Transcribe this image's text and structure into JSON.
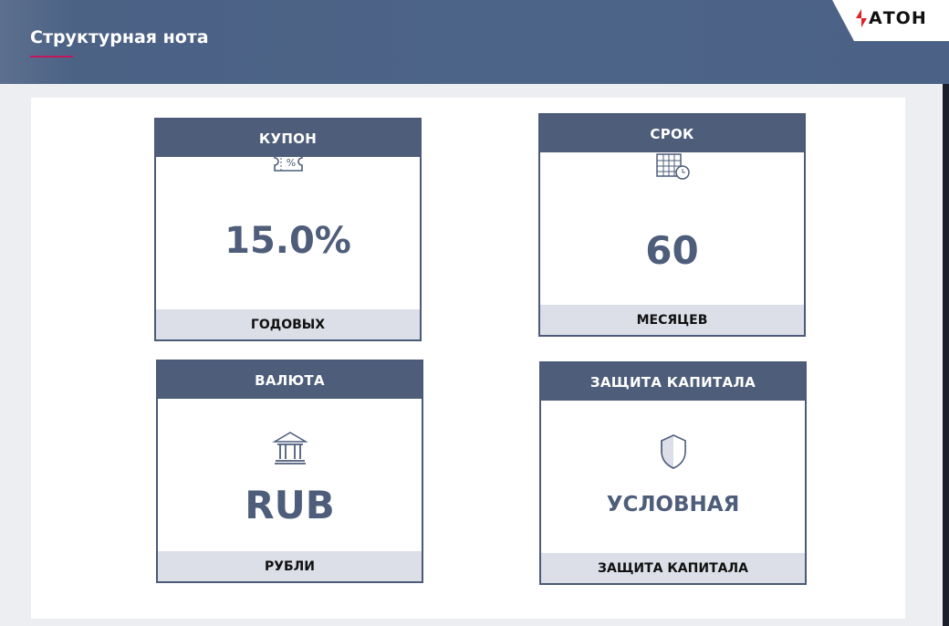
{
  "header": {
    "title": "Структурная нота",
    "logo_text": "АТОН",
    "accent": "#c2185b"
  },
  "cards": [
    {
      "title": "КУПОН",
      "icon": "coupon-percent-icon",
      "value": "15.0%",
      "footer": "ГОДОВЫХ"
    },
    {
      "title": "СРОК",
      "icon": "calendar-clock-icon",
      "value": "60",
      "footer": "МЕСЯЦЕВ"
    },
    {
      "title": "ВАЛЮТА",
      "icon": "bank-icon",
      "value": "RUB",
      "footer": "РУБЛИ"
    },
    {
      "title": "ЗАЩИТА КАПИТАЛА",
      "icon": "shield-icon",
      "value": "УСЛОВНАЯ",
      "footer": "ЗАЩИТА КАПИТАЛА"
    }
  ]
}
